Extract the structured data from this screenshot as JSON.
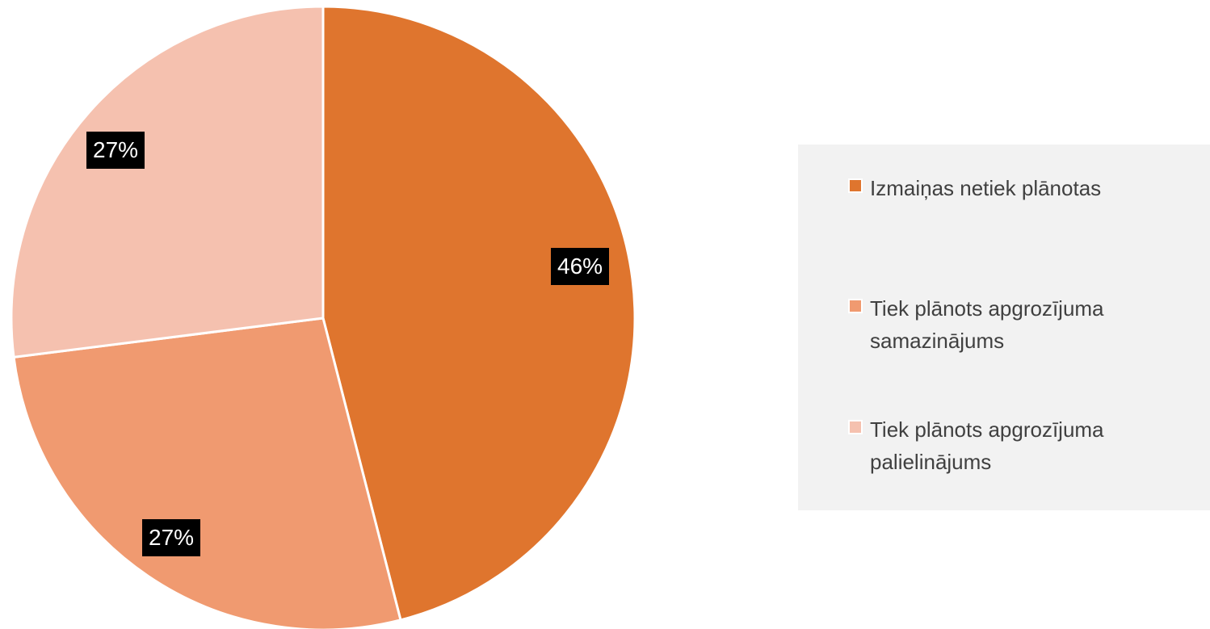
{
  "chart_data": {
    "type": "pie",
    "title": "",
    "series": [
      {
        "label": "Izmaiņas netiek plānotas",
        "value": 46,
        "display": "46%",
        "color": "#df752e"
      },
      {
        "label": "Tiek plānots apgrozījuma samazinājums",
        "value": 27,
        "display": "27%",
        "color": "#f09a70"
      },
      {
        "label": "Tiek plānots apgrozījuma palielinājums",
        "value": 27,
        "display": "27%",
        "color": "#f5c1af"
      }
    ],
    "legend_position": "right",
    "start_angle_deg": 0,
    "direction": "clockwise"
  }
}
